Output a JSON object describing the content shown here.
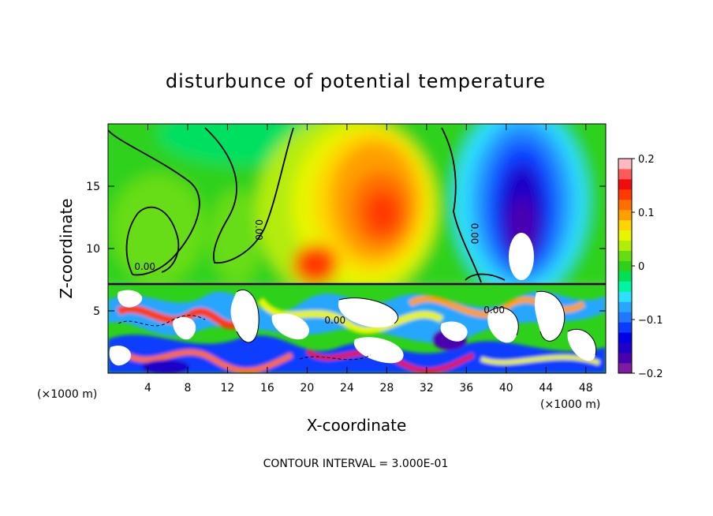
{
  "chart_data": {
    "type": "heatmap",
    "title": "disturbunce of potential temperature",
    "xlabel": "X-coordinate",
    "ylabel": "Z-coordinate",
    "x_unit_left": "(×1000 m)",
    "x_unit_right": "(×1000 m)",
    "xlim": [
      0,
      50
    ],
    "ylim": [
      0,
      20
    ],
    "x_ticks": [
      4,
      8,
      12,
      16,
      20,
      24,
      28,
      32,
      36,
      40,
      44,
      48
    ],
    "y_ticks": [
      5,
      10,
      15
    ],
    "contour_labels": [
      {
        "text": "0.00",
        "x": 3.7,
        "z": 8.3
      },
      {
        "text": "0.00",
        "x": 14.8,
        "z": 11.5
      },
      {
        "text": "0.00",
        "x": 36.5,
        "z": 11.2
      },
      {
        "text": "0.00",
        "x": 22.8,
        "z": 4.0
      },
      {
        "text": "0.00",
        "x": 38.8,
        "z": 4.8
      }
    ],
    "colorbar": {
      "range": [
        -0.2,
        0.2
      ],
      "tick_labels": [
        "0.2",
        "0.1",
        "0",
        "−0.1",
        "−0.2"
      ],
      "colors": [
        "#7d1ca3",
        "#4b00b0",
        "#1e00c8",
        "#0000e6",
        "#0a3cff",
        "#1f78ff",
        "#28a6ff",
        "#2ee0ff",
        "#00f5a0",
        "#00e056",
        "#2ed11a",
        "#66dd12",
        "#b4ec0a",
        "#e7f500",
        "#ffd400",
        "#ff9e00",
        "#ff6e00",
        "#ff3a00",
        "#f00c0c",
        "#ff5a5a",
        "#ffb8c0"
      ]
    },
    "footer": "CONTOUR INTERVAL =  3.000E-01"
  }
}
